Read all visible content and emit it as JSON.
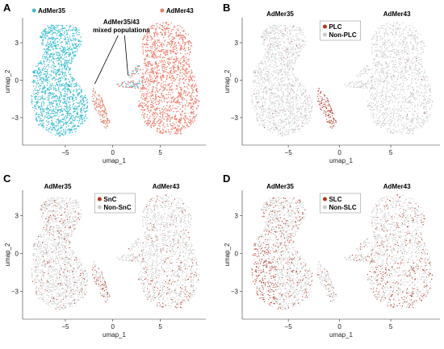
{
  "chart_data": [
    {
      "panel": "A",
      "type": "scatter",
      "xlabel": "umap_1",
      "ylabel": "umap_2",
      "xticks": [
        -5,
        0,
        5
      ],
      "yticks": [
        -3,
        0,
        3
      ],
      "xlim": [
        -9.5,
        9.8
      ],
      "ylim": [
        -5.2,
        5.0
      ],
      "group_labels": [],
      "legend": {
        "position": "top",
        "items": [
          {
            "label": "AdMer35",
            "color": "#3ebfd1"
          },
          {
            "label": "AdMer43",
            "color": "#ee7d6a"
          }
        ]
      },
      "annotation": {
        "lines": [
          "AdMer35/43",
          "mixed populations"
        ]
      },
      "mode": "sample"
    },
    {
      "panel": "B",
      "type": "scatter",
      "xlabel": "umap_1",
      "ylabel": "umap_2",
      "xticks": [
        -5,
        0,
        5
      ],
      "yticks": [
        -3,
        0,
        3
      ],
      "xlim": [
        -9.5,
        9.8
      ],
      "ylim": [
        -5.2,
        5.0
      ],
      "group_labels": [
        "AdMer35",
        "AdMer43"
      ],
      "legend": {
        "position": "top-left",
        "items": [
          {
            "label": "PLC",
            "color": "#b7321e"
          },
          {
            "label": "Non-PLC",
            "color": "#c8c8c8"
          }
        ]
      },
      "mode": "plc"
    },
    {
      "panel": "C",
      "type": "scatter",
      "xlabel": "umap_1",
      "ylabel": "umap_2",
      "xticks": [
        -5,
        0,
        5
      ],
      "yticks": [
        -3,
        0,
        3
      ],
      "xlim": [
        -9.5,
        9.8
      ],
      "ylim": [
        -5.2,
        5.0
      ],
      "group_labels": [
        "AdMer35",
        "AdMer43"
      ],
      "legend": {
        "position": "top-left",
        "items": [
          {
            "label": "SnC",
            "color": "#b7321e"
          },
          {
            "label": "Non-SnC",
            "color": "#c8c8c8"
          }
        ]
      },
      "mode": "snc"
    },
    {
      "panel": "D",
      "type": "scatter",
      "xlabel": "umap_1",
      "ylabel": "umap_2",
      "xticks": [
        -5,
        0,
        5
      ],
      "yticks": [
        -3,
        0,
        3
      ],
      "xlim": [
        -9.5,
        9.8
      ],
      "ylim": [
        -5.2,
        5.0
      ],
      "group_labels": [
        "AdMer35",
        "AdMer43"
      ],
      "legend": {
        "position": "top-left",
        "items": [
          {
            "label": "SLC",
            "color": "#b7321e"
          },
          {
            "label": "Non-SLC",
            "color": "#c8c8c8"
          }
        ]
      },
      "mode": "slc"
    }
  ]
}
